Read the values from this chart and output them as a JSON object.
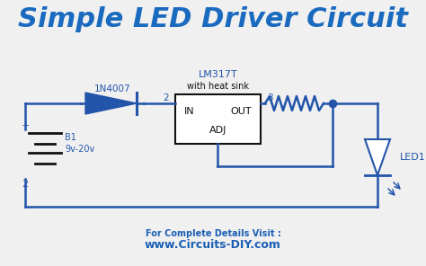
{
  "title": "Simple LED Driver Circuit",
  "title_color": "#1a6bbf",
  "title_fontsize": 22,
  "title_fontstyle": "italic",
  "title_fontweight": "bold",
  "bg_color": "#f0f0f0",
  "circuit_color": "#2255aa",
  "line_width": 1.8,
  "box_color": "#111111",
  "label_lm317": "LM317T",
  "label_heatsink": "with heat sink",
  "label_diode": "1N4007",
  "label_battery": "B1",
  "label_voltage": "9v-20v",
  "label_led": "LED1",
  "label_in": "IN",
  "label_out": "OUT",
  "label_adj": "ADJ",
  "label_plus": "+",
  "label_minus": "2",
  "label_pin2": "2",
  "label_pin3": "3",
  "footer1": "For Complete Details Visit :",
  "footer2": "www.Circuits-DIY.com",
  "footer_color": "#1a5fb4",
  "footer1_fontsize": 7,
  "footer2_fontsize": 9
}
